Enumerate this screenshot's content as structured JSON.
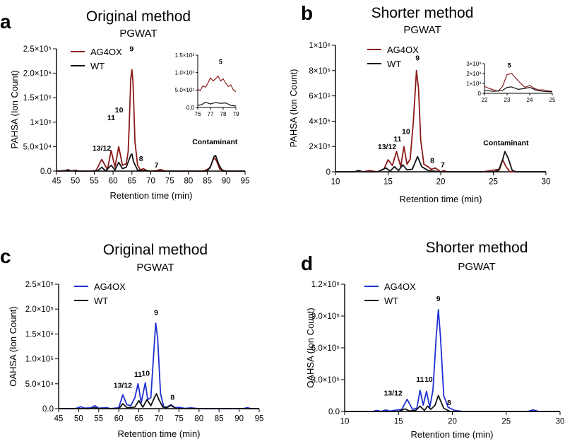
{
  "chart_data": [
    {
      "type": "line",
      "panel_letter": "a",
      "title": "Original method",
      "subtitle": "PGWAT",
      "xlabel": "Retention time (min)",
      "ylabel": "PAHSA (Ion Count)",
      "xlim": [
        45,
        95
      ],
      "ylim": [
        0,
        250000
      ],
      "xticks": [
        45,
        50,
        55,
        60,
        65,
        70,
        75,
        80,
        85,
        90,
        95
      ],
      "yticks": [
        0,
        50000,
        100000,
        150000,
        200000,
        250000
      ],
      "ytick_labels": [
        "0.0",
        "5.0×10⁴",
        "1×10⁵",
        "1.5×10⁵",
        "2.0×10⁵",
        "2.5×10⁵"
      ],
      "legend_position": "top-left",
      "series": [
        {
          "name": "AG4OX",
          "color": "#8b1a1a",
          "x": [
            45,
            47,
            48,
            49,
            50,
            51,
            54,
            55.5,
            57,
            58.5,
            59.5,
            60.5,
            61.5,
            62.5,
            63.5,
            64,
            64.3,
            64.7,
            65,
            65.3,
            65.8,
            66.5,
            67.3,
            68,
            69,
            70,
            71.5,
            72.5,
            74,
            80,
            84,
            85.7,
            86.5,
            87,
            87.5,
            88.3,
            90,
            95
          ],
          "y": [
            0,
            0,
            3000,
            0,
            2000,
            0,
            0,
            1500,
            24000,
            3000,
            42000,
            8000,
            50000,
            12000,
            15000,
            40000,
            100000,
            190000,
            207000,
            180000,
            60000,
            12000,
            2000,
            5000,
            1000,
            0,
            1000,
            3000,
            0,
            0,
            0,
            6000,
            24000,
            26000,
            20000,
            4000,
            0,
            0
          ]
        },
        {
          "name": "WT",
          "color": "#111111",
          "x": [
            45,
            48,
            50,
            55,
            56,
            57,
            58,
            59.5,
            60.5,
            61.5,
            62.5,
            63.5,
            64.7,
            65,
            65.4,
            66.5,
            68,
            70,
            85,
            86,
            86.8,
            87.2,
            88,
            89,
            95
          ],
          "y": [
            0,
            1500,
            0,
            0,
            1000,
            8000,
            500,
            12000,
            2000,
            18000,
            5000,
            8000,
            33000,
            35000,
            20000,
            2000,
            1000,
            0,
            0,
            12000,
            30000,
            32000,
            14000,
            0,
            0
          ]
        }
      ],
      "annotations": [
        {
          "label": "13/12",
          "x": 57,
          "y": 42000
        },
        {
          "label": "11",
          "x": 59.5,
          "y": 104000
        },
        {
          "label": "10",
          "x": 61.6,
          "y": 120000
        },
        {
          "label": "9",
          "x": 64.9,
          "y": 245000
        },
        {
          "label": "8",
          "x": 67.4,
          "y": 20000
        },
        {
          "label": "7",
          "x": 71.5,
          "y": 7000
        },
        {
          "label": "Contaminant",
          "x": 87,
          "y": 55000
        }
      ],
      "inset": {
        "xlim": [
          76,
          79
        ],
        "ylim": [
          0,
          1500
        ],
        "xticks": [
          76,
          77,
          78,
          79
        ],
        "yticks": [
          0,
          500,
          1000,
          1500
        ],
        "ytick_labels": [
          "0.0",
          "5.0×10²",
          "1.0×10³",
          "1.5×10³"
        ],
        "label": "5",
        "label_x": 77.8,
        "label_y": 1250,
        "series": [
          {
            "name": "AG4OX",
            "color": "#8b1a1a",
            "x": [
              76,
              76.2,
              76.4,
              76.6,
              76.8,
              77,
              77.2,
              77.4,
              77.6,
              77.8,
              78,
              78.2,
              78.4,
              78.6,
              78.8,
              79
            ],
            "y": [
              520,
              480,
              620,
              580,
              700,
              850,
              760,
              820,
              900,
              760,
              820,
              700,
              600,
              650,
              500,
              450
            ]
          },
          {
            "name": "WT",
            "color": "#111111",
            "x": [
              76,
              76.3,
              76.6,
              77,
              77.4,
              77.8,
              78.2,
              78.6,
              79
            ],
            "y": [
              60,
              80,
              150,
              100,
              140,
              120,
              130,
              60,
              40
            ]
          }
        ]
      }
    },
    {
      "type": "line",
      "panel_letter": "b",
      "title": "Shorter method",
      "subtitle": "PGWAT",
      "xlabel": "Retention time (min)",
      "ylabel": "PAHSA (Ion Count)",
      "xlim": [
        10,
        30
      ],
      "ylim": [
        0,
        1000000
      ],
      "xticks": [
        10,
        15,
        20,
        25,
        30
      ],
      "yticks": [
        0,
        200000,
        400000,
        600000,
        800000,
        1000000
      ],
      "ytick_labels": [
        "0",
        "2×10⁵",
        "4×10⁵",
        "6×10⁵",
        "8×10⁵",
        "1×10⁶"
      ],
      "legend_position": "top-left",
      "series": [
        {
          "name": "AG4OX",
          "color": "#8b1a1a",
          "x": [
            10,
            11.8,
            12.2,
            12.6,
            13.2,
            13.6,
            14,
            14.6,
            15,
            15.4,
            15.8,
            16.2,
            16.5,
            16.8,
            17.1,
            17.4,
            17.7,
            17.9,
            18.1,
            18.4,
            18.8,
            19.1,
            19.5,
            20,
            20.3,
            20.6,
            24,
            25.6,
            25.9,
            26.2,
            26.6,
            30
          ],
          "y": [
            0,
            0,
            10000,
            0,
            10000,
            5000,
            0,
            20000,
            95000,
            50000,
            160000,
            40000,
            200000,
            60000,
            100000,
            400000,
            800000,
            650000,
            250000,
            60000,
            40000,
            20000,
            30000,
            0,
            10000,
            0,
            0,
            20000,
            95000,
            40000,
            0,
            0
          ]
        },
        {
          "name": "WT",
          "color": "#111111",
          "x": [
            10,
            11.8,
            12.2,
            12.6,
            14,
            14.8,
            15.2,
            15.6,
            16,
            16.4,
            16.8,
            17.3,
            17.8,
            18.2,
            18.8,
            20,
            25,
            25.5,
            25.9,
            26.1,
            26.4,
            26.8,
            27.2,
            30
          ],
          "y": [
            0,
            0,
            10000,
            0,
            0,
            30000,
            5000,
            40000,
            10000,
            55000,
            15000,
            20000,
            120000,
            40000,
            10000,
            0,
            0,
            10000,
            100000,
            160000,
            110000,
            10000,
            0,
            0
          ]
        }
      ],
      "annotations": [
        {
          "label": "13/12",
          "x": 14.9,
          "y": 180000
        },
        {
          "label": "11",
          "x": 15.9,
          "y": 240000
        },
        {
          "label": "10",
          "x": 16.7,
          "y": 300000
        },
        {
          "label": "9",
          "x": 17.8,
          "y": 880000
        },
        {
          "label": "8",
          "x": 19.2,
          "y": 70000
        },
        {
          "label": "7",
          "x": 20.2,
          "y": 35000
        },
        {
          "label": "Contaminant",
          "x": 26.2,
          "y": 210000
        }
      ],
      "inset": {
        "xlim": [
          22,
          25
        ],
        "ylim": [
          0,
          3000
        ],
        "xticks": [
          22,
          23,
          24,
          25
        ],
        "yticks": [
          0,
          1000,
          2000,
          3000
        ],
        "ytick_labels": [
          "0",
          "1×10³",
          "2×10³",
          "3×10³"
        ],
        "label": "5",
        "label_x": 23.1,
        "label_y": 2600,
        "series": [
          {
            "name": "AG4OX",
            "color": "#8b1a1a",
            "x": [
              22,
              22.2,
              22.4,
              22.6,
              22.8,
              23,
              23.2,
              23.4,
              23.6,
              23.8,
              24,
              24.2,
              24.4,
              24.6,
              24.8,
              25
            ],
            "y": [
              700,
              500,
              350,
              200,
              700,
              1900,
              2000,
              1500,
              1000,
              600,
              800,
              500,
              350,
              350,
              250,
              200
            ]
          },
          {
            "name": "WT",
            "color": "#111111",
            "x": [
              22,
              22.4,
              22.8,
              23,
              23.2,
              23.5,
              23.8,
              24,
              24.3,
              24.6,
              25
            ],
            "y": [
              300,
              200,
              300,
              600,
              650,
              400,
              500,
              600,
              300,
              200,
              150
            ]
          }
        ]
      }
    },
    {
      "type": "line",
      "panel_letter": "c",
      "title": "Original method",
      "subtitle": "PGWAT",
      "xlabel": "Retention time (min)",
      "ylabel": "OAHSA (Ion Count)",
      "xlim": [
        45,
        95
      ],
      "ylim": [
        0,
        250000
      ],
      "xticks": [
        45,
        50,
        55,
        60,
        65,
        70,
        75,
        80,
        85,
        90,
        95
      ],
      "yticks": [
        0,
        50000,
        100000,
        150000,
        200000,
        250000
      ],
      "ytick_labels": [
        "0.0",
        "5.0×10⁴",
        "1.0×10⁵",
        "1.5×10⁵",
        "2.0×10⁵",
        "2.5×10⁵"
      ],
      "legend_position": "top-left",
      "series": [
        {
          "name": "AG4OX",
          "color": "#1f2fd1",
          "x": [
            45,
            49,
            50,
            50.5,
            51.5,
            53,
            54,
            55,
            57,
            58,
            60,
            61,
            62,
            63,
            64,
            64.8,
            65.6,
            66.6,
            67.2,
            68,
            68.7,
            69.2,
            69.7,
            70.4,
            71.2,
            72,
            73,
            74,
            75,
            76.5,
            78,
            80,
            85,
            91,
            92,
            93,
            95
          ],
          "y": [
            0,
            0,
            2000,
            4000,
            1000,
            1500,
            6000,
            1000,
            2000,
            0,
            2000,
            28000,
            8000,
            6000,
            22000,
            50000,
            12000,
            52000,
            18000,
            22000,
            110000,
            172000,
            140000,
            30000,
            4000,
            3000,
            8000,
            2000,
            2500,
            500,
            1500,
            0,
            0,
            0,
            2000,
            0,
            0
          ]
        },
        {
          "name": "WT",
          "color": "#111111",
          "x": [
            45,
            50,
            53,
            54,
            55,
            60,
            61,
            62,
            64,
            65,
            66,
            67,
            68,
            69,
            69.4,
            70,
            71,
            72,
            73,
            74,
            75,
            95
          ],
          "y": [
            0,
            0,
            0,
            2000,
            0,
            0,
            10000,
            2000,
            3000,
            16000,
            3000,
            18000,
            6000,
            24000,
            30000,
            18000,
            3000,
            2000,
            7000,
            1000,
            0,
            0
          ]
        }
      ],
      "annotations": [
        {
          "label": "13/12",
          "x": 61,
          "y": 42000
        },
        {
          "label": "11",
          "x": 64.8,
          "y": 64000
        },
        {
          "label": "10",
          "x": 66.7,
          "y": 66000
        },
        {
          "label": "9",
          "x": 69.3,
          "y": 188000
        },
        {
          "label": "8",
          "x": 73.4,
          "y": 18000
        }
      ]
    },
    {
      "type": "line",
      "panel_letter": "d",
      "title": "Shorter method",
      "subtitle": "PGWAT",
      "xlabel": "Retention time (min)",
      "ylabel": "OAHSA (Ion Count)",
      "xlim": [
        10,
        30
      ],
      "ylim": [
        0,
        1200000
      ],
      "xticks": [
        10,
        15,
        20,
        25,
        30
      ],
      "yticks": [
        0,
        300000,
        600000,
        900000,
        1200000
      ],
      "ytick_labels": [
        "0.0",
        "3.0×10⁵",
        "6.0×10⁵",
        "9.0×10⁵",
        "1.2×10⁶"
      ],
      "legend_position": "top-left",
      "series": [
        {
          "name": "AG4OX",
          "color": "#1f2fd1",
          "x": [
            10,
            12.6,
            13,
            13.4,
            13.8,
            14.2,
            14.6,
            15.3,
            15.8,
            16.3,
            16.7,
            17,
            17.3,
            17.6,
            17.9,
            18.2,
            18.5,
            18.7,
            18.9,
            19.2,
            19.6,
            20.2,
            21,
            27,
            27.5,
            28,
            30
          ],
          "y": [
            0,
            0,
            10000,
            0,
            15000,
            3000,
            10000,
            20000,
            115000,
            20000,
            30000,
            200000,
            60000,
            190000,
            40000,
            200000,
            700000,
            960000,
            700000,
            150000,
            40000,
            10000,
            0,
            0,
            15000,
            0,
            0
          ]
        },
        {
          "name": "WT",
          "color": "#111111",
          "x": [
            10,
            15,
            15.6,
            16,
            16.6,
            17,
            17.4,
            17.7,
            18,
            18.4,
            18.7,
            19.2,
            19.8,
            30
          ],
          "y": [
            0,
            0,
            25000,
            5000,
            10000,
            50000,
            10000,
            50000,
            20000,
            60000,
            150000,
            30000,
            0,
            0
          ]
        }
      ],
      "annotations": [
        {
          "label": "13/12",
          "x": 14.5,
          "y": 150000
        },
        {
          "label": "11",
          "x": 17,
          "y": 280000
        },
        {
          "label": "10",
          "x": 17.8,
          "y": 280000
        },
        {
          "label": "9",
          "x": 18.7,
          "y": 1040000
        },
        {
          "label": "8",
          "x": 19.7,
          "y": 60000
        }
      ]
    }
  ]
}
